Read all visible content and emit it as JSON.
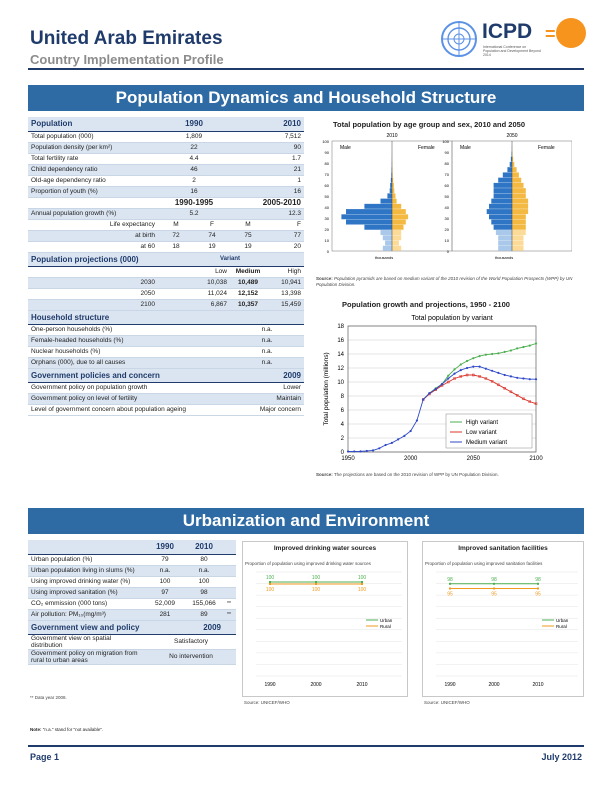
{
  "header": {
    "title": "United Arab Emirates",
    "subtitle": "Country Implementation Profile",
    "icpd_logo": "ICPD",
    "icpd_sub": "International Conference on Population and Development Beyond 2014"
  },
  "banner1": "Population Dynamics and Household Structure",
  "banner2": "Urbanization and Environment",
  "population": {
    "header": [
      "Population",
      "1990",
      "2010"
    ],
    "rows": [
      [
        "Total population (000)",
        "1,809",
        "7,512"
      ],
      [
        "Population density (per km²)",
        "22",
        "90"
      ],
      [
        "Total fertility rate",
        "4.4",
        "1.7"
      ],
      [
        "Child dependency ratio",
        "46",
        "21"
      ],
      [
        "Old-age dependency ratio",
        "2",
        "1"
      ],
      [
        "Proportion of youth (%)",
        "16",
        "16"
      ]
    ],
    "period_header": [
      "1990-1995",
      "2005-2010"
    ],
    "growth": [
      "Annual population growth (%)",
      "5.2",
      "12.3"
    ],
    "life_header": [
      "Life expectancy",
      "M",
      "F",
      "M",
      "F"
    ],
    "at_birth": [
      "at birth",
      "72",
      "74",
      "75",
      "77"
    ],
    "at_60": [
      "at 60",
      "18",
      "19",
      "19",
      "20"
    ]
  },
  "projections": {
    "title": "Population projections (000)",
    "variant_label": "Variant",
    "cols": [
      "Low",
      "Medium",
      "High"
    ],
    "rows": [
      [
        "2030",
        "10,038",
        "10,489",
        "10,941"
      ],
      [
        "2050",
        "11,024",
        "12,152",
        "13,398"
      ],
      [
        "2100",
        "6,867",
        "10,357",
        "15,459"
      ]
    ]
  },
  "household": {
    "title": "Household structure",
    "rows": [
      [
        "One-person households (%)",
        "n.a."
      ],
      [
        "Female-headed households (%)",
        "n.a."
      ],
      [
        "Nuclear households (%)",
        "n.a."
      ],
      [
        "Orphans (000), due to all causes",
        "n.a."
      ]
    ]
  },
  "policies": {
    "title": "Government policies and concern",
    "year": "2009",
    "rows": [
      [
        "Government policy on population growth",
        "Lower"
      ],
      [
        "Government policy on level of fertility",
        "Maintain"
      ],
      [
        "Level of government concern about population ageing",
        "Major concern"
      ]
    ]
  },
  "pyramid": {
    "title": "Total population by age group and sex, 2010 and 2050",
    "years": [
      "2010",
      "2050"
    ],
    "male_label": "Male",
    "female_label": "Female",
    "y_ticks": [
      "100",
      "90",
      "80",
      "70",
      "60",
      "50",
      "40",
      "30",
      "20",
      "10",
      "0"
    ],
    "x_label_left": "thousands",
    "x_label_right": "thousands",
    "source_bold": "Source:",
    "source_text": "Population pyramids are based on medium variant of the 2010 revision of the World Population Prospects (WPP) by UN Population Division.",
    "male_color": "#2e75c5",
    "female_color": "#f4b942"
  },
  "growth_chart": {
    "title": "Population growth and projections, 1950 - 2100",
    "subtitle": "Total population by variant",
    "source_bold": "Source:",
    "source_text": "The projections are based on the 2010 revision of WPP by UN Population Division."
  },
  "urban": {
    "header": [
      "",
      "1990",
      "2010"
    ],
    "rows": [
      [
        "Urban population (%)",
        "79",
        "80",
        ""
      ],
      [
        "Urban population living in slums (%)",
        "n.a.",
        "n.a.",
        ""
      ],
      [
        "Using improved drinking water (%)",
        "100",
        "100",
        ""
      ],
      [
        "Using improved sanitation (%)",
        "97",
        "98",
        ""
      ],
      [
        "CO₂ emmission (000 tons)",
        "52,009",
        "155,066",
        "**"
      ],
      [
        "Air pollution: PM₁₀(mg/m³)",
        "281",
        "89",
        "**"
      ]
    ],
    "view_title": "Government view and policy",
    "view_year": "2009",
    "view_rows": [
      [
        "Government view on spatial distribution",
        "Satisfactory"
      ],
      [
        "Government policy on migration from rural to urban areas",
        "No intervention"
      ]
    ],
    "footnote": "** Data year 2008.",
    "note_bold": "Note:",
    "note_text": "\"n.a.\" stand for \"not available\"."
  },
  "water_chart": {
    "title": "Improved drinking water sources",
    "subtitle": "Proportion of population using improved drinking water sources",
    "source": "Source: UNICEF/WHO",
    "urban_label": "Urban",
    "rural_label": "Rural"
  },
  "sanit_chart": {
    "title": "Improved sanitation facilities",
    "subtitle": "Proportion of population using improved sanitation facilities",
    "source": "Source: UNICEF/WHO",
    "urban_label": "Urban",
    "rural_label": "Rural"
  },
  "footer": {
    "page": "Page 1",
    "date": "July 2012"
  },
  "chart_data": [
    {
      "type": "line",
      "title": "Total population by variant",
      "ylabel": "Total population (millions)",
      "x_ticks": [
        "1950",
        "2000",
        "2050",
        "2100"
      ],
      "y_ticks": [
        "0",
        "2",
        "4",
        "6",
        "8",
        "10",
        "12",
        "14",
        "16",
        "18"
      ],
      "ylim": [
        0,
        18
      ],
      "xlim": [
        1950,
        2100
      ],
      "legend": "bottom-right",
      "series": [
        {
          "name": "High variant",
          "color": "#4caf50",
          "x": [
            2010,
            2015,
            2020,
            2025,
            2030,
            2035,
            2040,
            2045,
            2050,
            2055,
            2060,
            2065,
            2070,
            2075,
            2080,
            2085,
            2090,
            2095,
            2100
          ],
          "y": [
            7.5,
            8.4,
            9.1,
            9.7,
            10.9,
            11.8,
            12.5,
            13.0,
            13.4,
            13.7,
            13.9,
            14.0,
            14.1,
            14.3,
            14.5,
            14.8,
            15.0,
            15.2,
            15.5
          ]
        },
        {
          "name": "Low variant",
          "color": "#d9342b",
          "x": [
            2010,
            2015,
            2020,
            2025,
            2030,
            2035,
            2040,
            2045,
            2050,
            2055,
            2060,
            2065,
            2070,
            2075,
            2080,
            2085,
            2090,
            2095,
            2100
          ],
          "y": [
            7.5,
            8.3,
            8.9,
            9.5,
            10.0,
            10.5,
            10.8,
            11.0,
            11.0,
            10.8,
            10.5,
            10.1,
            9.6,
            9.1,
            8.6,
            8.1,
            7.6,
            7.2,
            6.9
          ]
        },
        {
          "name": "Medium variant",
          "color": "#2f49c9",
          "x": [
            1950,
            1955,
            1960,
            1965,
            1970,
            1975,
            1980,
            1985,
            1990,
            1995,
            2000,
            2005,
            2010,
            2015,
            2020,
            2025,
            2030,
            2035,
            2040,
            2045,
            2050,
            2055,
            2060,
            2065,
            2070,
            2075,
            2080,
            2085,
            2090,
            2095,
            2100
          ],
          "y": [
            0.07,
            0.08,
            0.09,
            0.15,
            0.23,
            0.53,
            1.0,
            1.3,
            1.8,
            2.3,
            3.0,
            4.5,
            7.5,
            8.4,
            9.0,
            9.7,
            10.5,
            11.2,
            11.7,
            12.0,
            12.2,
            12.2,
            11.9,
            11.6,
            11.3,
            11.0,
            10.8,
            10.6,
            10.5,
            10.4,
            10.4
          ]
        }
      ]
    },
    {
      "type": "line",
      "title": "Improved drinking water sources",
      "categories": [
        "1990",
        "2000",
        "2010"
      ],
      "ylim": [
        0,
        100
      ],
      "series": [
        {
          "name": "Urban",
          "color": "#4caf50",
          "values": [
            100,
            100,
            100
          ]
        },
        {
          "name": "Rural",
          "color": "#f29a1f",
          "values": [
            100,
            100,
            100
          ]
        }
      ]
    },
    {
      "type": "line",
      "title": "Improved sanitation facilities",
      "categories": [
        "1990",
        "2000",
        "2010"
      ],
      "ylim": [
        0,
        100
      ],
      "series": [
        {
          "name": "Urban",
          "color": "#4caf50",
          "values": [
            98,
            98,
            98
          ]
        },
        {
          "name": "Rural",
          "color": "#f29a1f",
          "values": [
            95,
            95,
            95
          ]
        }
      ]
    }
  ]
}
